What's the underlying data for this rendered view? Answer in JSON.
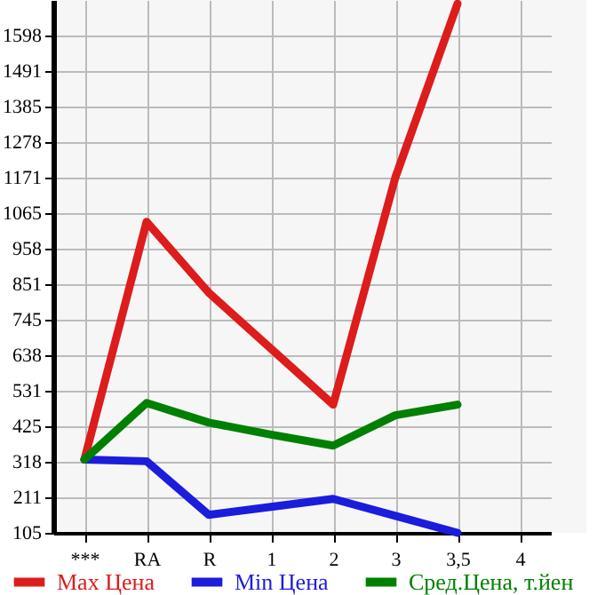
{
  "chart_data": {
    "type": "line",
    "categories": [
      "***",
      "RA",
      "R",
      "1",
      "2",
      "3",
      "3,5",
      "4"
    ],
    "series": [
      {
        "name": "Max Цена",
        "color": "#dd1c1c",
        "values": [
          325,
          1039,
          826,
          658,
          490,
          1172,
          1694,
          null
        ]
      },
      {
        "name": "Min Цена",
        "color": "#1c1cdd",
        "values": [
          325,
          320,
          159,
          183,
          207,
          156,
          105,
          null
        ]
      },
      {
        "name": "Сред.Цена, т.йен",
        "color": "#008000",
        "values": [
          325,
          495,
          436,
          400,
          367,
          458,
          490,
          null
        ]
      }
    ],
    "ylim": [
      105,
      1705
    ],
    "yticks": [
      105,
      211,
      318,
      425,
      531,
      638,
      745,
      851,
      958,
      1065,
      1171,
      1278,
      1385,
      1491,
      1598
    ],
    "grid": true,
    "legend": "bottom",
    "marker": "none",
    "line_style": "solid"
  }
}
